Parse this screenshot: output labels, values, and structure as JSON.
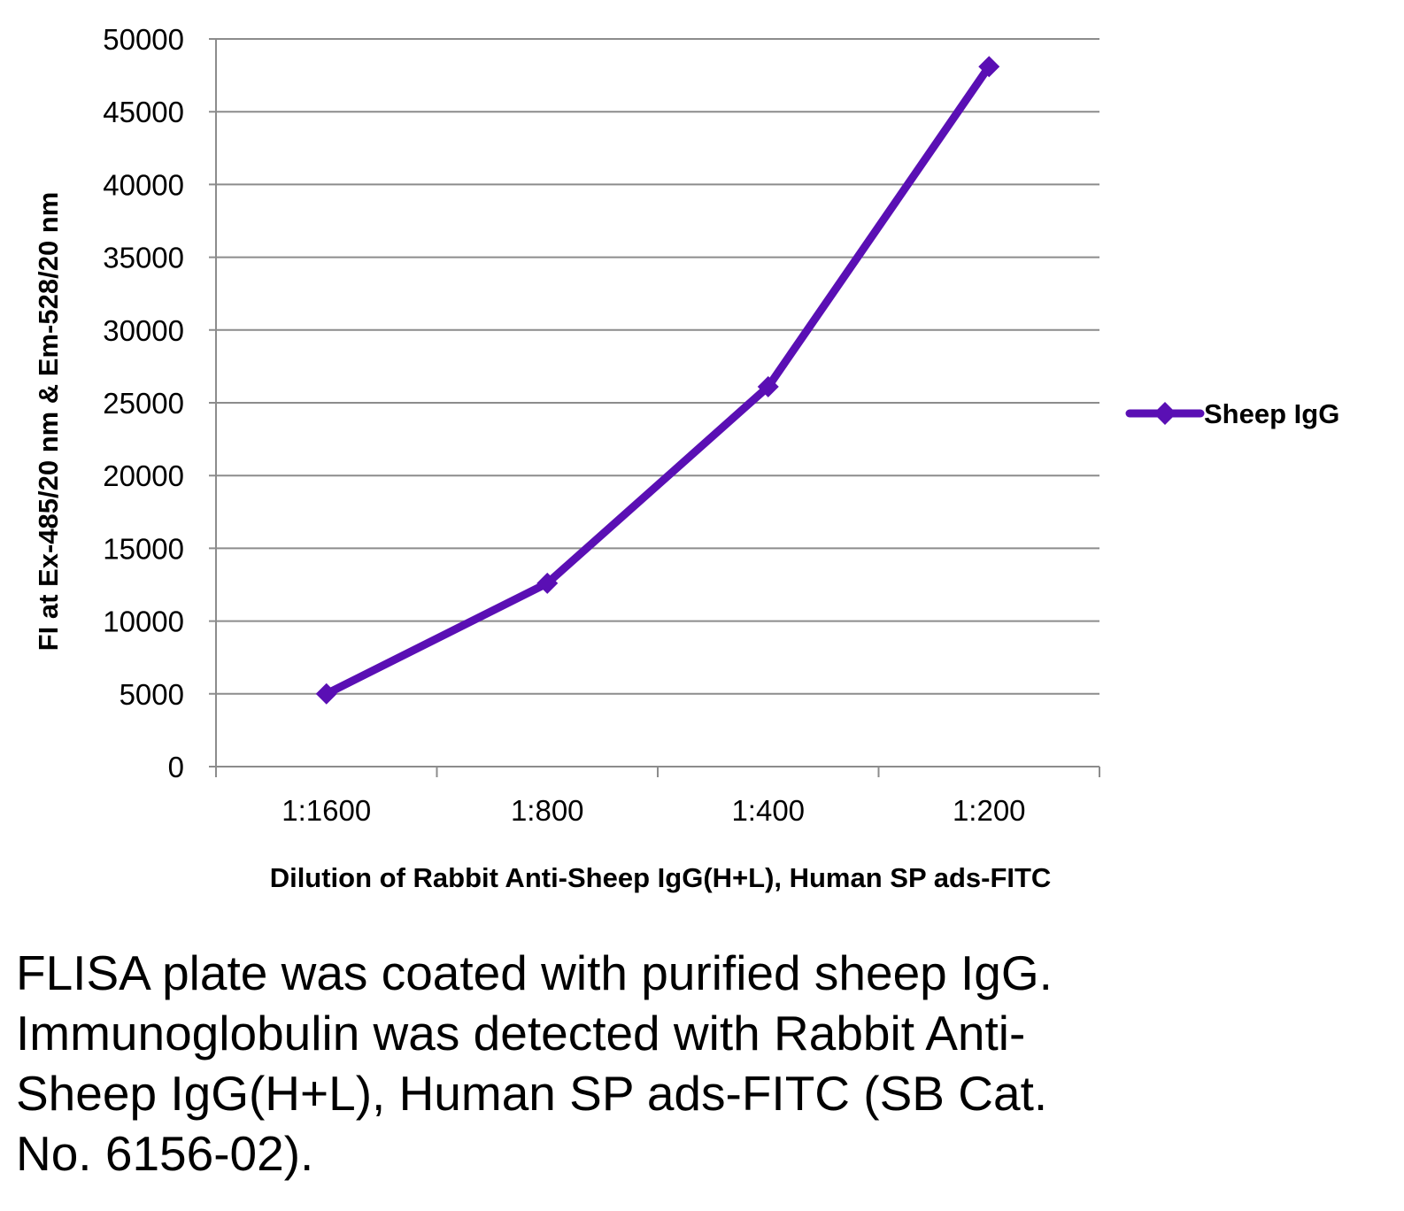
{
  "chart_data": {
    "type": "line",
    "categories": [
      "1:1600",
      "1:800",
      "1:400",
      "1:200"
    ],
    "series": [
      {
        "name": "Sheep IgG",
        "values": [
          5000,
          12600,
          26100,
          48100
        ],
        "color": "#5a0fb4",
        "marker": "diamond"
      }
    ],
    "xlabel": "Dilution of Rabbit Anti-Sheep IgG(H+L), Human SP ads-FITC",
    "ylabel": "FI at Ex-485/20 nm & Em-528/20 nm",
    "ylim": [
      0,
      50000
    ],
    "yticks": [
      0,
      5000,
      10000,
      15000,
      20000,
      25000,
      30000,
      35000,
      40000,
      45000,
      50000
    ],
    "grid": true,
    "legend_position": "right",
    "gridline_color": "#8c8c8c",
    "axis_color": "#8c8c8c"
  },
  "caption": "FLISA plate was coated with purified sheep IgG.  Immunoglobulin was detected with Rabbit Anti-Sheep IgG(H+L), Human SP ads-FITC (SB Cat. No. 6156-02)."
}
